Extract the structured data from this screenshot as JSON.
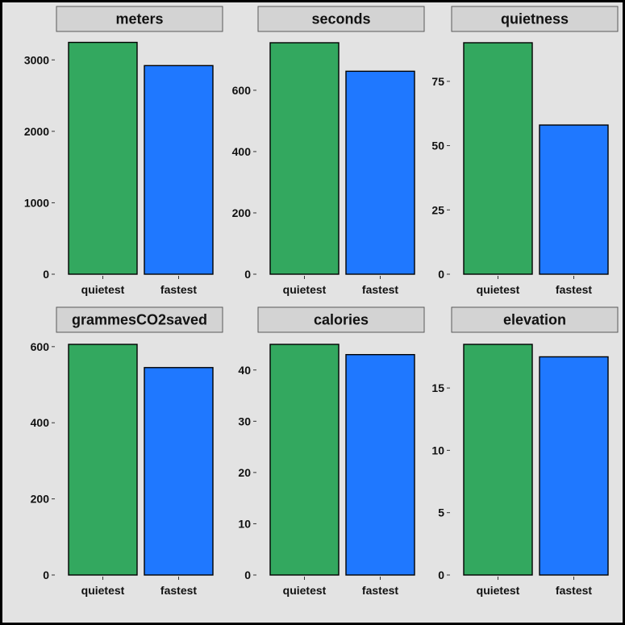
{
  "colors": {
    "quietest": "#33a85f",
    "fastest": "#1f78ff"
  },
  "chart_data": [
    {
      "type": "bar",
      "title": "meters",
      "categories": [
        "quietest",
        "fastest"
      ],
      "values": [
        3245,
        2920
      ],
      "ylim": [
        0,
        3240
      ],
      "yticks": [
        0,
        1000,
        2000,
        3000
      ]
    },
    {
      "type": "bar",
      "title": "seconds",
      "categories": [
        "quietest",
        "fastest"
      ],
      "values": [
        755,
        662
      ],
      "ylim": [
        0,
        755
      ],
      "yticks": [
        0,
        200,
        400,
        600
      ]
    },
    {
      "type": "bar",
      "title": "quietness",
      "categories": [
        "quietest",
        "fastest"
      ],
      "values": [
        90,
        58
      ],
      "ylim": [
        0,
        90
      ],
      "yticks": [
        0,
        25,
        50,
        75
      ]
    },
    {
      "type": "bar",
      "title": "grammesCO2saved",
      "categories": [
        "quietest",
        "fastest"
      ],
      "values": [
        606,
        545
      ],
      "ylim": [
        0,
        606
      ],
      "yticks": [
        0,
        200,
        400,
        600
      ]
    },
    {
      "type": "bar",
      "title": "calories",
      "categories": [
        "quietest",
        "fastest"
      ],
      "values": [
        45,
        43
      ],
      "ylim": [
        0,
        45
      ],
      "yticks": [
        0,
        10,
        20,
        30,
        40
      ]
    },
    {
      "type": "bar",
      "title": "elevation",
      "categories": [
        "quietest",
        "fastest"
      ],
      "values": [
        18.5,
        17.5
      ],
      "ylim": [
        0,
        18.5
      ],
      "yticks": [
        0,
        5,
        10,
        15
      ]
    }
  ]
}
